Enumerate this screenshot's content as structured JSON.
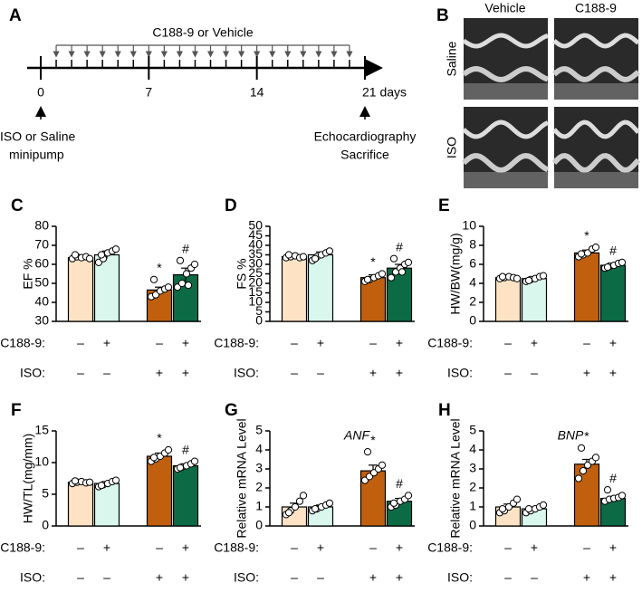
{
  "timeline": {
    "label": "A",
    "treatment": "C188-9 or Vehicle",
    "xlim": [
      0,
      21
    ],
    "xticks": [
      0,
      7,
      14,
      {
        "value": 21,
        "label": "21 days"
      }
    ],
    "start_note": [
      "ISO or Saline",
      "minipump"
    ],
    "end_note": [
      "Echocardiography",
      "Sacrifice"
    ]
  },
  "images": {
    "label": "B",
    "columns": [
      "Vehicle",
      "C188-9"
    ],
    "rows": [
      "Saline",
      "ISO"
    ]
  },
  "chart_data": [
    {
      "type": "bar",
      "label": "C",
      "ylabel": "EF %",
      "ylim": [
        30,
        80
      ],
      "yticks": [
        30,
        40,
        50,
        60,
        70,
        80
      ],
      "colors": [
        "#fde3c4",
        "#d9f7ec",
        "#c0600f",
        "#0c6b44"
      ],
      "values": [
        63.5,
        65,
        46.5,
        54.5
      ],
      "errors": [
        1,
        2,
        1.5,
        3.5
      ],
      "points": [
        [
          63,
          64,
          63.5,
          64,
          63,
          65
        ],
        [
          61,
          63,
          66,
          67,
          68,
          65
        ],
        [
          43,
          44,
          46,
          47,
          48,
          52
        ],
        [
          48,
          50,
          55,
          58,
          60,
          62,
          49
        ]
      ],
      "markers": [
        null,
        null,
        "*",
        "#"
      ],
      "conditions": [
        {
          "name": "C188-9:",
          "signs": [
            "–",
            "+",
            "–",
            "+"
          ]
        },
        {
          "name": "ISO:",
          "signs": [
            "–",
            "–",
            "+",
            "+"
          ]
        }
      ]
    },
    {
      "type": "bar",
      "label": "D",
      "ylabel": "FS %",
      "ylim": [
        0,
        50
      ],
      "yticks": [
        0,
        5,
        10,
        15,
        20,
        25,
        30,
        35,
        40,
        45,
        50
      ],
      "colors": [
        "#fde3c4",
        "#d9f7ec",
        "#c0600f",
        "#0c6b44"
      ],
      "values": [
        34,
        35,
        23,
        28
      ],
      "errors": [
        0.8,
        1.5,
        1.5,
        2
      ],
      "points": [
        [
          33.5,
          34,
          34.5,
          33.5,
          34,
          35
        ],
        [
          32,
          34,
          35,
          36,
          37,
          33
        ],
        [
          21,
          22,
          23,
          24,
          25,
          22
        ],
        [
          23,
          26,
          28,
          30,
          31,
          33,
          26
        ]
      ],
      "markers": [
        null,
        null,
        "*",
        "#"
      ],
      "conditions": [
        {
          "name": "C188-9:",
          "signs": [
            "–",
            "+",
            "–",
            "+"
          ]
        },
        {
          "name": "ISO:",
          "signs": [
            "–",
            "–",
            "+",
            "+"
          ]
        }
      ]
    },
    {
      "type": "bar",
      "label": "E",
      "ylabel": "HW/BW(mg/g)",
      "ylim": [
        0,
        10
      ],
      "yticks": [
        0,
        2,
        4,
        6,
        8,
        10
      ],
      "colors": [
        "#fde3c4",
        "#d9f7ec",
        "#c0600f",
        "#0c6b44"
      ],
      "values": [
        4.6,
        4.5,
        7.2,
        5.9
      ],
      "errors": [
        0.1,
        0.2,
        0.3,
        0.2
      ],
      "points": [
        [
          4.5,
          4.6,
          4.7,
          4.6,
          4.5,
          4.7
        ],
        [
          4.2,
          4.4,
          4.5,
          4.7,
          4.8,
          4.3
        ],
        [
          6.8,
          7.0,
          7.2,
          7.6,
          7.8,
          7.1
        ],
        [
          5.6,
          5.8,
          5.9,
          6.1,
          6.2,
          5.7
        ]
      ],
      "markers": [
        null,
        null,
        "*",
        "#"
      ],
      "conditions": [
        {
          "name": "C188-9:",
          "signs": [
            "–",
            "+",
            "–",
            "+"
          ]
        },
        {
          "name": "ISO:",
          "signs": [
            "–",
            "–",
            "+",
            "+"
          ]
        }
      ]
    },
    {
      "type": "bar",
      "label": "F",
      "ylabel": "HW/TL(mg/mm)",
      "ylim": [
        0,
        15
      ],
      "yticks": [
        0,
        5,
        10,
        15
      ],
      "colors": [
        "#fde3c4",
        "#d9f7ec",
        "#c0600f",
        "#0c6b44"
      ],
      "values": [
        6.9,
        6.7,
        11,
        9.5
      ],
      "errors": [
        0.2,
        0.3,
        0.5,
        0.3
      ],
      "points": [
        [
          6.7,
          6.9,
          7.0,
          6.8,
          6.9,
          7.1
        ],
        [
          6.2,
          6.5,
          6.7,
          7.0,
          7.2,
          6.4
        ],
        [
          10.2,
          10.6,
          11,
          11.5,
          12,
          10.8
        ],
        [
          9,
          9.3,
          9.5,
          9.8,
          10.2,
          9.2
        ]
      ],
      "markers": [
        null,
        null,
        "*",
        "#"
      ],
      "conditions": [
        {
          "name": "C188-9:",
          "signs": [
            "–",
            "+",
            "–",
            "+"
          ]
        },
        {
          "name": "ISO:",
          "signs": [
            "–",
            "–",
            "+",
            "+"
          ]
        }
      ]
    },
    {
      "type": "bar",
      "label": "G",
      "ylabel": "Relative mRNA Level",
      "annotation": "ANF",
      "ylim": [
        0,
        5
      ],
      "yticks": [
        0,
        1,
        2,
        3,
        4,
        5
      ],
      "colors": [
        "#fde3c4",
        "#d9f7ec",
        "#c0600f",
        "#0c6b44"
      ],
      "values": [
        1,
        1,
        2.9,
        1.3
      ],
      "errors": [
        0.2,
        0.1,
        0.3,
        0.15
      ],
      "points": [
        [
          0.6,
          0.8,
          1.0,
          1.3,
          1.6,
          0.7
        ],
        [
          0.8,
          0.9,
          1.0,
          1.1,
          1.2,
          0.9
        ],
        [
          2.4,
          2.6,
          2.8,
          3.0,
          3.2,
          3.9
        ],
        [
          1.0,
          1.1,
          1.3,
          1.4,
          1.6,
          1.2
        ]
      ],
      "markers": [
        null,
        null,
        "*",
        "#"
      ],
      "conditions": [
        {
          "name": "C188-9:",
          "signs": [
            "–",
            "+",
            "–",
            "+"
          ]
        },
        {
          "name": "ISO:",
          "signs": [
            "–",
            "–",
            "+",
            "+"
          ]
        }
      ]
    },
    {
      "type": "bar",
      "label": "H",
      "ylabel": "Relative mRNA Level",
      "annotation": "BNP",
      "ylim": [
        0,
        5
      ],
      "yticks": [
        0,
        1,
        2,
        3,
        4,
        5
      ],
      "colors": [
        "#fde3c4",
        "#d9f7ec",
        "#c0600f",
        "#0c6b44"
      ],
      "values": [
        1,
        0.9,
        3.25,
        1.45
      ],
      "errors": [
        0.15,
        0.1,
        0.25,
        0.1
      ],
      "points": [
        [
          0.7,
          0.8,
          1.0,
          1.2,
          1.4,
          0.9
        ],
        [
          0.7,
          0.8,
          0.9,
          1.0,
          1.1,
          0.9
        ],
        [
          2.5,
          2.9,
          3.2,
          3.4,
          3.6,
          4.1
        ],
        [
          1.3,
          1.4,
          1.45,
          1.5,
          1.6,
          1.9
        ]
      ],
      "markers": [
        null,
        null,
        "*",
        "#"
      ],
      "conditions": [
        {
          "name": "C188-9:",
          "signs": [
            "–",
            "+",
            "–",
            "+"
          ]
        },
        {
          "name": "ISO:",
          "signs": [
            "–",
            "–",
            "+",
            "+"
          ]
        }
      ]
    }
  ]
}
